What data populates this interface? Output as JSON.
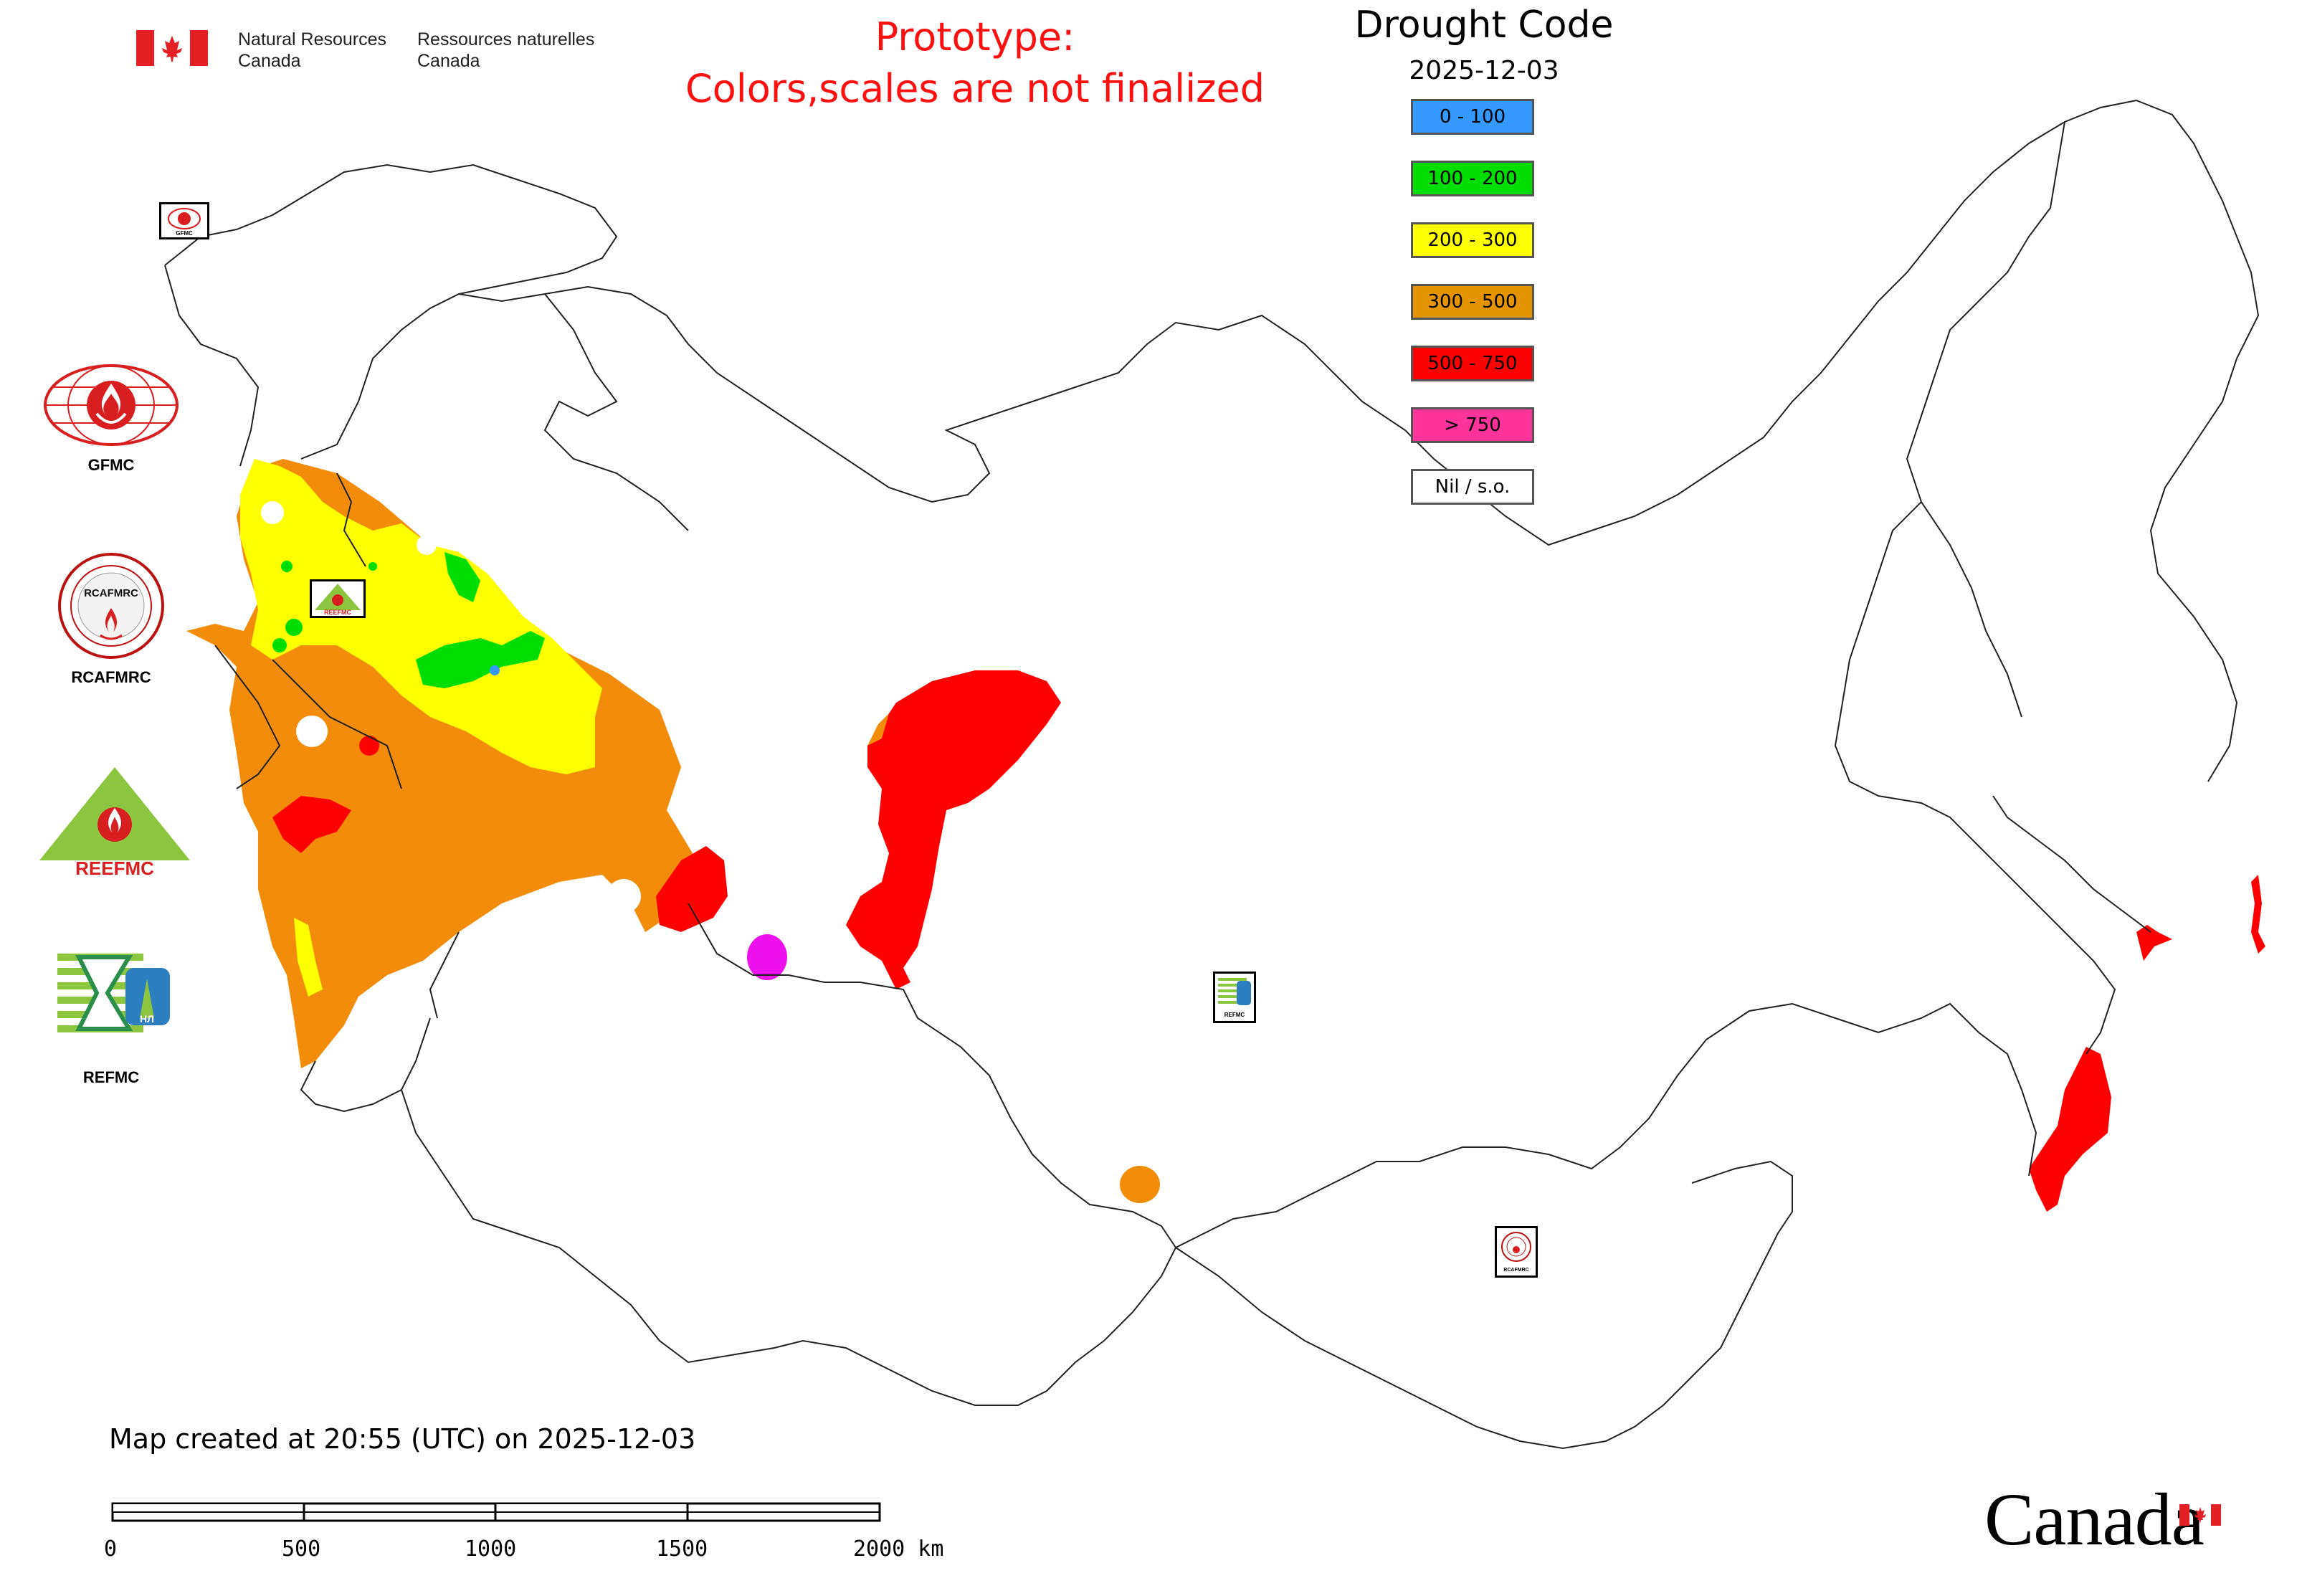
{
  "header": {
    "org_en_line1": "Natural Resources",
    "org_en_line2": "Canada",
    "org_fr_line1": "Ressources naturelles",
    "org_fr_line2": "Canada",
    "prototype_line1": "Prototype:",
    "prototype_line2": "Colors,scales are not finalized"
  },
  "map": {
    "title": "Drought Code",
    "date": "2025-12-03"
  },
  "legend": [
    {
      "label": "0 - 100",
      "color": "#3399ff"
    },
    {
      "label": "100 - 200",
      "color": "#00dd00"
    },
    {
      "label": "200 - 300",
      "color": "#ffff00"
    },
    {
      "label": "300 - 500",
      "color": "#e39400"
    },
    {
      "label": "500 - 750",
      "color": "#ff0000"
    },
    {
      "label": "> 750",
      "color": "#ff3399"
    },
    {
      "label": "Nil / s.o.",
      "color": "#ffffff"
    }
  ],
  "logos": [
    {
      "label": "GFMC",
      "icon": "gfmc-logo-icon"
    },
    {
      "label": "RCAFMRC",
      "icon": "rcafmrc-logo-icon"
    },
    {
      "label": "",
      "icon": "reefmc-logo-icon"
    },
    {
      "label": "REFMC",
      "icon": "refmc-logo-icon"
    }
  ],
  "logo_wordmarks": {
    "rcafmrc": "RCAFMRC",
    "reefmc": "REEFMC",
    "refmc_inner": "НЛ",
    "small_gfmc": "GFMC",
    "small_refmc": "REFMC",
    "small_rcafmrc": "RCAFMRC"
  },
  "footer": {
    "created": "Map created at 20:55 (UTC) on 2025-12-03",
    "scale_labels": [
      "0",
      "500",
      "1000",
      "1500",
      "2000 km"
    ],
    "wordmark": "Canada"
  },
  "colors": {
    "prototype_text": "#ff1010",
    "moderate": "#f28c0a",
    "high": "#ff0000",
    "low": "#ffff00",
    "very_low": "#00dd00",
    "extreme": "#ee11ee"
  }
}
